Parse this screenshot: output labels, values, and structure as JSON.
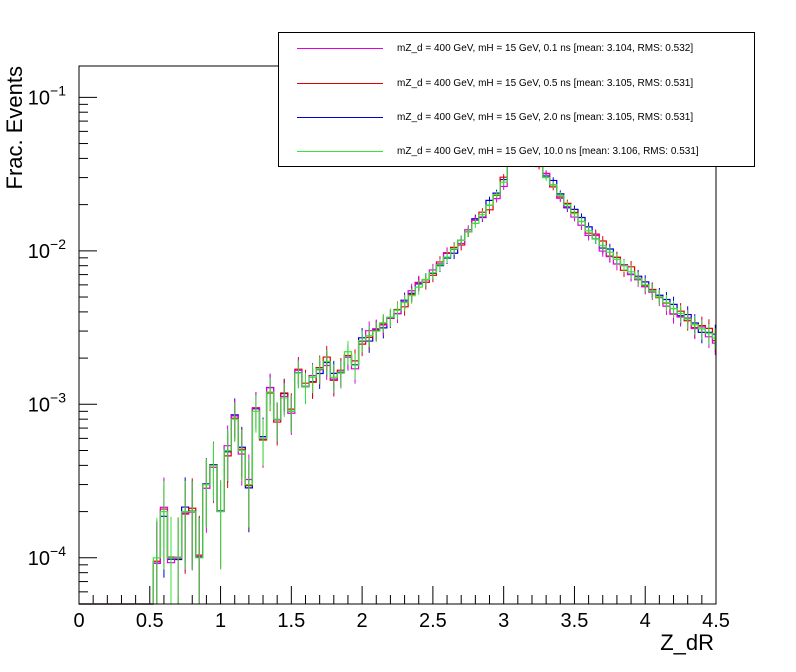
{
  "chart_data": {
    "type": "line",
    "title": "",
    "xlabel": "Z_dR",
    "ylabel": "Frac. Events",
    "xlim": [
      0,
      4.5
    ],
    "ylim": [
      5e-05,
      0.16
    ],
    "yscale": "log",
    "grid": false,
    "legend_position": "top-right",
    "x_ticks": [
      "0",
      "0.5",
      "1",
      "1.5",
      "2",
      "2.5",
      "3",
      "3.5",
      "4",
      "4.5"
    ],
    "y_ticks": [
      {
        "base": "10",
        "exp": "−4",
        "value": 0.0001
      },
      {
        "base": "10",
        "exp": "−3",
        "value": 0.001
      },
      {
        "base": "10",
        "exp": "−2",
        "value": 0.01
      },
      {
        "base": "10",
        "exp": "−1",
        "value": 0.1
      }
    ],
    "series": [
      {
        "name": "mZ_d = 400 GeV, mH = 15 GeV, 0.1 ns [mean: 3.104, RMS: 0.532]",
        "color": "#e000e0"
      },
      {
        "name": "mZ_d = 400 GeV, mH = 15 GeV, 0.5 ns [mean: 3.105, RMS: 0.531]",
        "color": "#e00000"
      },
      {
        "name": "mZ_d = 400 GeV, mH = 15 GeV, 2.0 ns [mean: 3.105, RMS: 0.531]",
        "color": "#0000cc"
      },
      {
        "name": "mZ_d = 400 GeV, mH = 15 GeV, 10.0 ns [mean: 3.106, RMS: 0.531]",
        "color": "#33e633"
      }
    ],
    "x": [
      0.55,
      0.6,
      0.65,
      0.7,
      0.75,
      0.8,
      0.85,
      0.9,
      0.95,
      1.0,
      1.05,
      1.1,
      1.15,
      1.2,
      1.25,
      1.3,
      1.35,
      1.4,
      1.45,
      1.5,
      1.55,
      1.6,
      1.65,
      1.7,
      1.75,
      1.8,
      1.85,
      1.9,
      1.95,
      2.0,
      2.05,
      2.1,
      2.15,
      2.2,
      2.25,
      2.3,
      2.35,
      2.4,
      2.45,
      2.5,
      2.55,
      2.6,
      2.65,
      2.7,
      2.75,
      2.8,
      2.85,
      2.9,
      2.95,
      3.0,
      3.05,
      3.1,
      3.15,
      3.2,
      3.25,
      3.3,
      3.35,
      3.4,
      3.45,
      3.5,
      3.55,
      3.6,
      3.65,
      3.7,
      3.75,
      3.8,
      3.85,
      3.9,
      3.95,
      4.0,
      4.05,
      4.1,
      4.15,
      4.2,
      4.25,
      4.3,
      4.35,
      4.4,
      4.45,
      4.5
    ],
    "values": [
      0.0001,
      0.0002,
      0.0001,
      0.0001,
      0.0002,
      0.0002,
      0.0001,
      0.0003,
      0.0004,
      0.0002,
      0.0005,
      0.0008,
      0.0005,
      0.0003,
      0.0009,
      0.0006,
      0.0012,
      0.0008,
      0.0011,
      0.0009,
      0.0016,
      0.0013,
      0.0015,
      0.0017,
      0.0019,
      0.0015,
      0.0016,
      0.0022,
      0.0018,
      0.0026,
      0.0028,
      0.003,
      0.0034,
      0.0037,
      0.0041,
      0.0046,
      0.0051,
      0.0058,
      0.0065,
      0.0072,
      0.0081,
      0.0091,
      0.0103,
      0.0117,
      0.0133,
      0.0151,
      0.0172,
      0.0198,
      0.0232,
      0.028,
      0.04,
      0.052,
      0.056,
      0.048,
      0.038,
      0.03,
      0.027,
      0.023,
      0.02,
      0.0175,
      0.0155,
      0.0135,
      0.012,
      0.0108,
      0.0098,
      0.0088,
      0.008,
      0.0073,
      0.0066,
      0.006,
      0.0055,
      0.005,
      0.0046,
      0.0042,
      0.0039,
      0.0036,
      0.0033,
      0.0031,
      0.0029,
      0.0027
    ]
  }
}
